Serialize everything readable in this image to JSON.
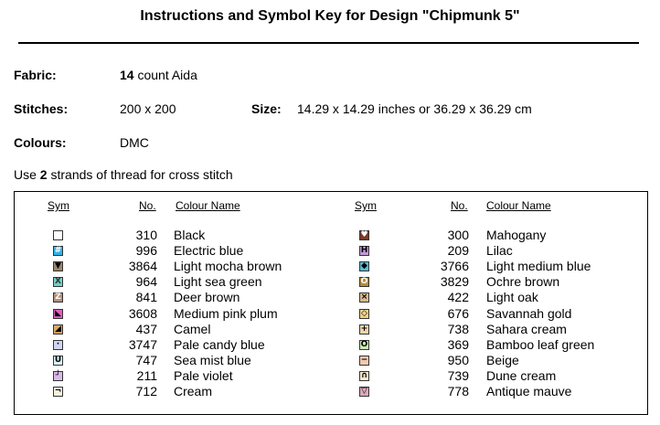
{
  "title": "Instructions and Symbol Key for Design \"Chipmunk 5\"",
  "fabric": {
    "label": "Fabric:",
    "count": "14",
    "text": "count Aida"
  },
  "stitches": {
    "label": "Stitches:",
    "value": "200 x 200"
  },
  "size": {
    "label": "Size:",
    "value": "14.29 x 14.29 inches or 36.29 x 36.29 cm"
  },
  "colours": {
    "label": "Colours:",
    "value": "DMC"
  },
  "instruction": {
    "prefix": "Use",
    "strands": "2",
    "suffix": "strands of thread for cross stitch"
  },
  "table": {
    "headers": {
      "sym": "Sym",
      "no": "No.",
      "name": "Colour Name"
    },
    "left": [
      {
        "no": "310",
        "name": "Black",
        "color": "#ffffff",
        "glyph": "",
        "glyph_color": "#000000"
      },
      {
        "no": "996",
        "name": "Electric blue",
        "color": "#2fb3e8",
        "glyph": "#",
        "glyph_color": "#ffffff"
      },
      {
        "no": "3864",
        "name": "Light mocha brown",
        "color": "#9a8668",
        "glyph": "▼",
        "glyph_color": "#000000"
      },
      {
        "no": "964",
        "name": "Light sea green",
        "color": "#6fd0c6",
        "glyph": "X",
        "glyph_color": "#333333"
      },
      {
        "no": "841",
        "name": "Deer brown",
        "color": "#b8907a",
        "glyph": "Z",
        "glyph_color": "#ffffff"
      },
      {
        "no": "3608",
        "name": "Medium pink plum",
        "color": "#e05fc3",
        "glyph": "◣",
        "glyph_color": "#000000"
      },
      {
        "no": "437",
        "name": "Camel",
        "color": "#d9a866",
        "glyph": "◢",
        "glyph_color": "#000000"
      },
      {
        "no": "3747",
        "name": "Pale candy blue",
        "color": "#cfd5f2",
        "glyph": "·",
        "glyph_color": "#000000"
      },
      {
        "no": "747",
        "name": "Sea mist blue",
        "color": "#d6f0f4",
        "glyph": "U",
        "glyph_color": "#000000"
      },
      {
        "no": "211",
        "name": "Pale violet",
        "color": "#d9b8e8",
        "glyph": "┘",
        "glyph_color": "#000000"
      },
      {
        "no": "712",
        "name": "Cream",
        "color": "#f7f0dc",
        "glyph": "¬",
        "glyph_color": "#000000"
      }
    ],
    "right": [
      {
        "no": "300",
        "name": "Mahogany",
        "color": "#7a3a2a",
        "glyph": "♥",
        "glyph_color": "#ffffff"
      },
      {
        "no": "209",
        "name": "Lilac",
        "color": "#c29ad8",
        "glyph": "H",
        "glyph_color": "#000000"
      },
      {
        "no": "3766",
        "name": "Light medium blue",
        "color": "#5ab8d2",
        "glyph": "◆",
        "glyph_color": "#000000"
      },
      {
        "no": "3829",
        "name": "Ochre brown",
        "color": "#b88a3a",
        "glyph": "O",
        "glyph_color": "#ffffff"
      },
      {
        "no": "422",
        "name": "Light oak",
        "color": "#d6b88a",
        "glyph": "×",
        "glyph_color": "#000000"
      },
      {
        "no": "676",
        "name": "Savannah gold",
        "color": "#ead08a",
        "glyph": "◇",
        "glyph_color": "#000000"
      },
      {
        "no": "738",
        "name": "Sahara cream",
        "color": "#eed3a8",
        "glyph": "+",
        "glyph_color": "#000000"
      },
      {
        "no": "369",
        "name": "Bamboo leaf green",
        "color": "#c9e8b2",
        "glyph": "O",
        "glyph_color": "#000000"
      },
      {
        "no": "950",
        "name": "Beige",
        "color": "#f2c9b0",
        "glyph": "−",
        "glyph_color": "#000000"
      },
      {
        "no": "739",
        "name": "Dune cream",
        "color": "#f4e6cc",
        "glyph": "∩",
        "glyph_color": "#000000"
      },
      {
        "no": "778",
        "name": "Antique mauve",
        "color": "#dba8b8",
        "glyph": "▽",
        "glyph_color": "#000000"
      }
    ]
  }
}
